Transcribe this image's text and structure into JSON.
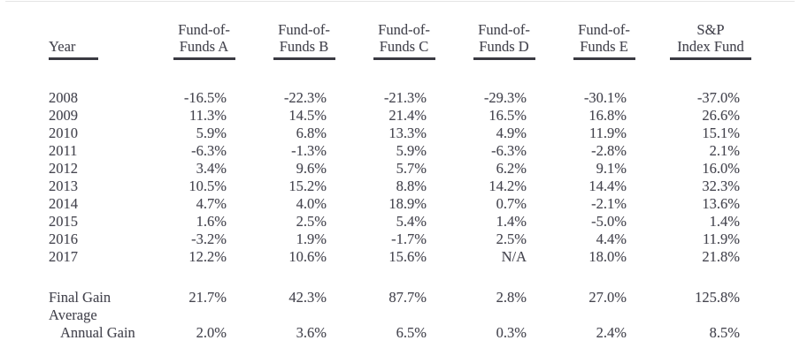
{
  "table": {
    "columns": [
      {
        "line1": "",
        "line2": "Year"
      },
      {
        "line1": "Fund-of-",
        "line2": "Funds A"
      },
      {
        "line1": "Fund-of-",
        "line2": "Funds B"
      },
      {
        "line1": "Fund-of-",
        "line2": "Funds C"
      },
      {
        "line1": "Fund-of-",
        "line2": "Funds D"
      },
      {
        "line1": "Fund-of-",
        "line2": "Funds E"
      },
      {
        "line1": "S&P",
        "line2": "Index Fund"
      }
    ],
    "rows": [
      {
        "year": "2008",
        "values": [
          "-16.5%",
          "-22.3%",
          "-21.3%",
          "-29.3%",
          "-30.1%",
          "-37.0%"
        ]
      },
      {
        "year": "2009",
        "values": [
          "11.3%",
          "14.5%",
          "21.4%",
          "16.5%",
          "16.8%",
          "26.6%"
        ]
      },
      {
        "year": "2010",
        "values": [
          "5.9%",
          "6.8%",
          "13.3%",
          "4.9%",
          "11.9%",
          "15.1%"
        ]
      },
      {
        "year": "2011",
        "values": [
          "-6.3%",
          "-1.3%",
          "5.9%",
          "-6.3%",
          "-2.8%",
          "2.1%"
        ]
      },
      {
        "year": "2012",
        "values": [
          "3.4%",
          "9.6%",
          "5.7%",
          "6.2%",
          "9.1%",
          "16.0%"
        ]
      },
      {
        "year": "2013",
        "values": [
          "10.5%",
          "15.2%",
          "8.8%",
          "14.2%",
          "14.4%",
          "32.3%"
        ]
      },
      {
        "year": "2014",
        "values": [
          "4.7%",
          "4.0%",
          "18.9%",
          "0.7%",
          "-2.1%",
          "13.6%"
        ]
      },
      {
        "year": "2015",
        "values": [
          "1.6%",
          "2.5%",
          "5.4%",
          "1.4%",
          "-5.0%",
          "1.4%"
        ]
      },
      {
        "year": "2016",
        "values": [
          "-3.2%",
          "1.9%",
          "-1.7%",
          "2.5%",
          "4.4%",
          "11.9%"
        ]
      },
      {
        "year": "2017",
        "values": [
          "12.2%",
          "10.6%",
          "15.6%",
          "N/A",
          "18.0%",
          "21.8%"
        ]
      }
    ],
    "summary": {
      "final_gain": {
        "label": "Final Gain",
        "values": [
          "21.7%",
          "42.3%",
          "87.7%",
          "2.8%",
          "27.0%",
          "125.8%"
        ]
      },
      "average": {
        "label1": "Average",
        "label2": "Annual Gain",
        "values": [
          "2.0%",
          "3.6%",
          "6.5%",
          "0.3%",
          "2.4%",
          "8.5%"
        ]
      }
    }
  },
  "colors": {
    "ink": "#45454f",
    "underline": "#3a3a42",
    "frame_border": "#e4e4e4",
    "background": "#ffffff"
  }
}
